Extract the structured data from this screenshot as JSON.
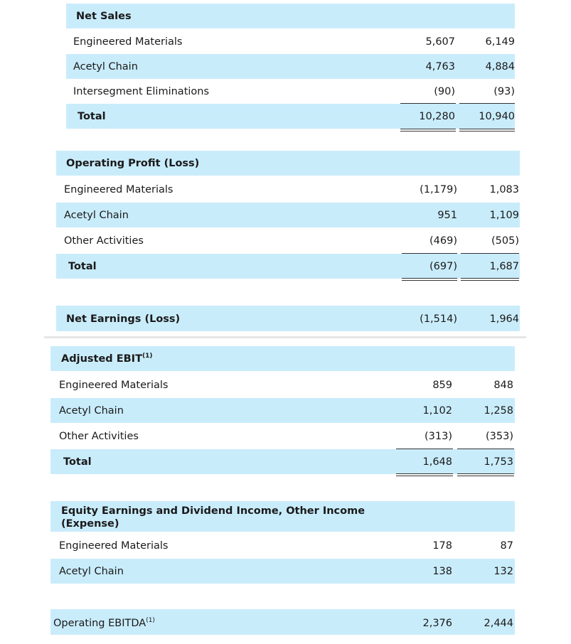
{
  "net_sales": {
    "title": "Net Sales",
    "rows": [
      {
        "label": "Engineered Materials",
        "v1": "5,607",
        "v2": "6,149"
      },
      {
        "label": "Acetyl Chain",
        "v1": "4,763",
        "v2": "4,884"
      },
      {
        "label": "Intersegment Eliminations",
        "v1": "(90)",
        "v2": "(93)"
      },
      {
        "label": "Total",
        "v1": "10,280",
        "v2": "10,940"
      }
    ]
  },
  "operating_profit": {
    "title": "Operating Profit (Loss)",
    "rows": [
      {
        "label": "Engineered Materials",
        "v1": "(1,179)",
        "v2": "1,083"
      },
      {
        "label": "Acetyl Chain",
        "v1": "951",
        "v2": "1,109"
      },
      {
        "label": "Other Activities",
        "v1": "(469)",
        "v2": "(505)"
      },
      {
        "label": "Total",
        "v1": "(697)",
        "v2": "1,687"
      }
    ]
  },
  "net_earnings": {
    "label": "Net Earnings (Loss)",
    "v1": "(1,514)",
    "v2": "1,964"
  },
  "adjusted_ebit": {
    "title": "Adjusted EBIT",
    "footnote": "(1)",
    "rows": [
      {
        "label": "Engineered Materials",
        "v1": "859",
        "v2": "848"
      },
      {
        "label": "Acetyl Chain",
        "v1": "1,102",
        "v2": "1,258"
      },
      {
        "label": "Other Activities",
        "v1": "(313)",
        "v2": "(353)"
      },
      {
        "label": "Total",
        "v1": "1,648",
        "v2": "1,753"
      }
    ]
  },
  "equity_earnings": {
    "title_line1": "Equity Earnings and Dividend Income, Other Income",
    "title_line2": "(Expense)",
    "rows": [
      {
        "label": "Engineered Materials",
        "v1": "178",
        "v2": "87"
      },
      {
        "label": "Acetyl Chain",
        "v1": "138",
        "v2": "132"
      }
    ]
  },
  "operating_ebitda": {
    "label": "Operating EBITDA",
    "footnote": "(1)",
    "v1": "2,376",
    "v2": "2,444"
  },
  "colors": {
    "band": "#c9ecfb"
  }
}
